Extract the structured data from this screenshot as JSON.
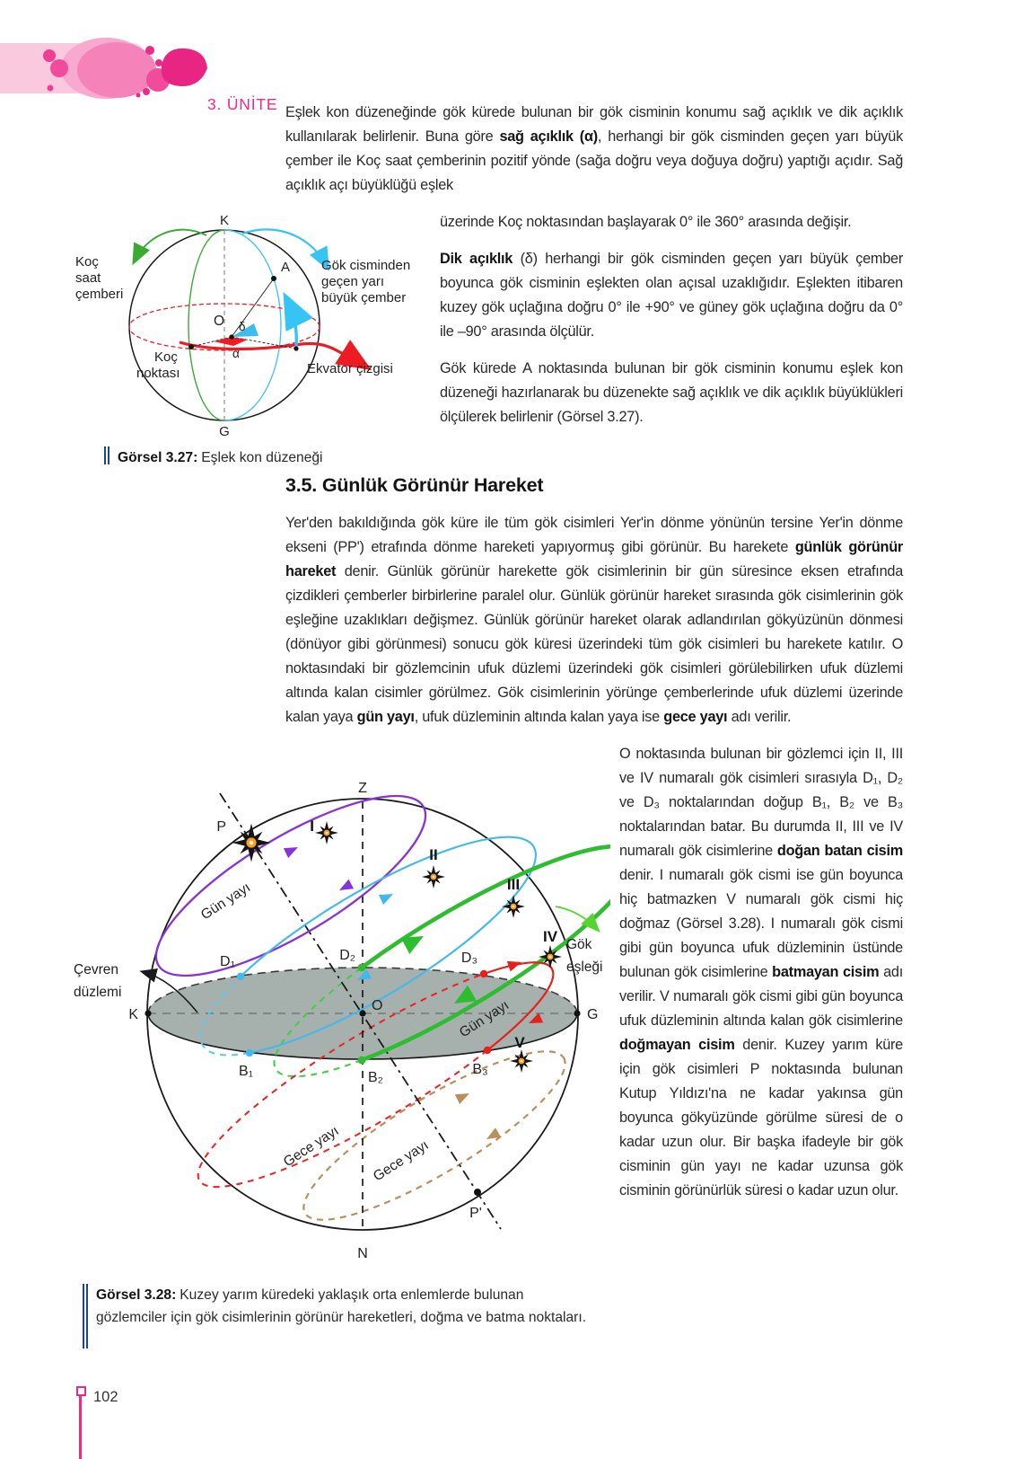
{
  "header": {
    "unit_label": "3. ÜNİTE",
    "accent_color": "#ee2a87"
  },
  "intro": {
    "p1a": [
      {
        "t": "Eşlek kon düzeneğinde gök kürede bulunan bir gök cisminin konumu sağ açıklık ve dik açıklık kullanılarak belirlenir. Buna göre ",
        "b": false
      },
      {
        "t": "sağ açıklık (α)",
        "b": true
      },
      {
        "t": ", herhangi bir gök cisminden geçen yarı büyük çember ile Koç saat çemberinin pozitif yönde (sağa doğru veya doğuya doğru) yaptığı açıdır. Sağ açıklık açı büyüklüğü eşlek",
        "b": false
      }
    ],
    "p1b": [
      {
        "t": "üzerinde Koç noktasından başlayarak 0° ile 360° arasında değişir.",
        "b": false
      }
    ],
    "p2": [
      {
        "t": "Dik açıklık",
        "b": true
      },
      {
        "t": " (δ) herhangi bir gök cisminden geçen yarı büyük çember boyunca gök cisminin eşlekten olan açısal uzaklığıdır. Eşlekten itibaren kuzey gök uçlağına doğru 0° ile +90° ve güney gök uçlağına doğru da 0° ile –90° arasında ölçülür.",
        "b": false
      }
    ],
    "p3": [
      {
        "t": "Gök kürede A noktasında bulunan bir gök cisminin konumu eşlek kon düzeneği hazırlanarak bu düzenekte sağ açıklık ve dik açıklık büyüklükleri ölçülerek belirlenir (Görsel 3.27).",
        "b": false
      }
    ]
  },
  "section": {
    "heading": "3.5. Günlük Görünür Hareket",
    "p4a": [
      {
        "t": "Yer'den bakıldığında gök küre ile tüm gök cisimleri Yer'in dönme yönünün tersine Yer'in dönme ekseni (PP') etrafında dönme hareketi yapıyormuş gibi görünür. Bu harekete ",
        "b": false
      },
      {
        "t": "günlük görünür hareket",
        "b": true
      },
      {
        "t": " denir. Günlük görünür harekette gök cisimlerinin bir gün süresince eksen etrafında çizdikleri çemberler birbirlerine paralel olur. Günlük görünür hareket sırasında gök cisimlerinin gök eşleğine uzaklıkları değişmez. Günlük görünür hareket olarak adlandırılan gökyüzünün dönmesi (dönüyor gibi görünmesi) sonucu gök küresi üzerindeki tüm gök cisimleri bu harekete katılır. O noktasındaki bir gözlemcinin ufuk düzlemi üzerindeki gök cisimleri görülebilirken ufuk düzlemi altında kalan cisimler görülmez. Gök cisimlerinin yörünge çemberlerinde ufuk düzlemi üzerinde kalan yaya ",
        "b": false
      },
      {
        "t": "gün yayı",
        "b": true
      },
      {
        "t": ", ufuk düzleminin altında kalan yaya ise ",
        "b": false
      },
      {
        "t": "gece yayı",
        "b": true
      },
      {
        "t": " adı verilir.",
        "b": false
      }
    ],
    "p4b": [
      {
        "t": "O noktasında bulunan bir gözlemci için II, III ve IV numaralı gök cisimleri sırasıyla D₁, D₂ ve D₃ noktalarından doğup B₁, B₂ ve B₃ noktalarından batar. Bu durumda II, III ve IV numaralı gök cisimlerine ",
        "b": false
      },
      {
        "t": "doğan batan cisim",
        "b": true
      },
      {
        "t": " denir. I numaralı gök cismi ise gün boyunca hiç batmazken V numaralı gök cismi hiç doğmaz (Görsel 3.28). I numaralı gök cismi gibi gün boyunca ufuk düzleminin üstünde bulunan gök cisimlerine ",
        "b": false
      },
      {
        "t": "batmayan cisim",
        "b": true
      },
      {
        "t": " adı verilir. V numaralı gök cismi gibi gün boyunca ufuk düzleminin altında kalan gök cisimlerine ",
        "b": false
      },
      {
        "t": "doğmayan cisim",
        "b": true
      },
      {
        "t": " denir. Kuzey yarım küre için gök cisimleri P noktasında bulunan Kutup Yıldızı'na ne kadar yakınsa gün boyunca gökyüzünde görülme süresi de o kadar uzun olur. Bir başka ifadeyle bir gök cisminin gün yayı ne kadar uzunsa gök cisminin görünürlük süresi o kadar uzun olur.",
        "b": false
      }
    ]
  },
  "figure327": {
    "caption_label": "Görsel 3.27:",
    "caption_text": "Eşlek kon düzeneği",
    "labels": {
      "k": "K",
      "g": "G",
      "o": "O",
      "a": "A",
      "alpha": "α",
      "delta": "δ",
      "koc_saat": [
        "Koç",
        "saat",
        "çemberi"
      ],
      "koc_noktasi": [
        "Koç",
        "noktası"
      ],
      "gok_cismi": [
        "Gök cisminden",
        "geçen yarı",
        "büyük çember"
      ],
      "ekvator": "Ekvator çizgisi"
    },
    "colors": {
      "green": "#3aaa35",
      "cyan": "#35c4f3",
      "red": "#ed1c24"
    }
  },
  "figure328": {
    "caption_label": "Görsel 3.28:",
    "caption_text": "Kuzey yarım küredeki yaklaşık orta enlemlerde bulunan gözlemciler için gök cisimlerinin görünür hareketleri, doğma ve batma noktaları.",
    "labels": {
      "z": "Z",
      "n": "N",
      "k": "K",
      "g": "G",
      "o": "O",
      "p": "P",
      "p_prime": "P'",
      "d1": "D₁",
      "d2": "D₂",
      "d3": "D₃",
      "b1": "B₁",
      "b2": "B₂",
      "b3": "B₃",
      "star1": "I",
      "star2": "II",
      "star3": "III",
      "star4": "IV",
      "star5": "V",
      "gun_yayi_1": "Gün yayı",
      "gun_yayi_2": "Gün yayı",
      "gece_yayi_1": "Gece yayı",
      "gece_yayi_2": "Gece yayı",
      "cevren": [
        "Çevren",
        "düzlemi"
      ],
      "gok_eslegi": [
        "Gök",
        "eşleği"
      ]
    },
    "colors": {
      "purple": "#8733d6",
      "cyan": "#41b9ec",
      "green": "#2ebd2e",
      "red": "#e8201d",
      "tan": "#b9905c",
      "horizon": "#a6b1ae"
    }
  },
  "footer": {
    "page_number": "102"
  }
}
